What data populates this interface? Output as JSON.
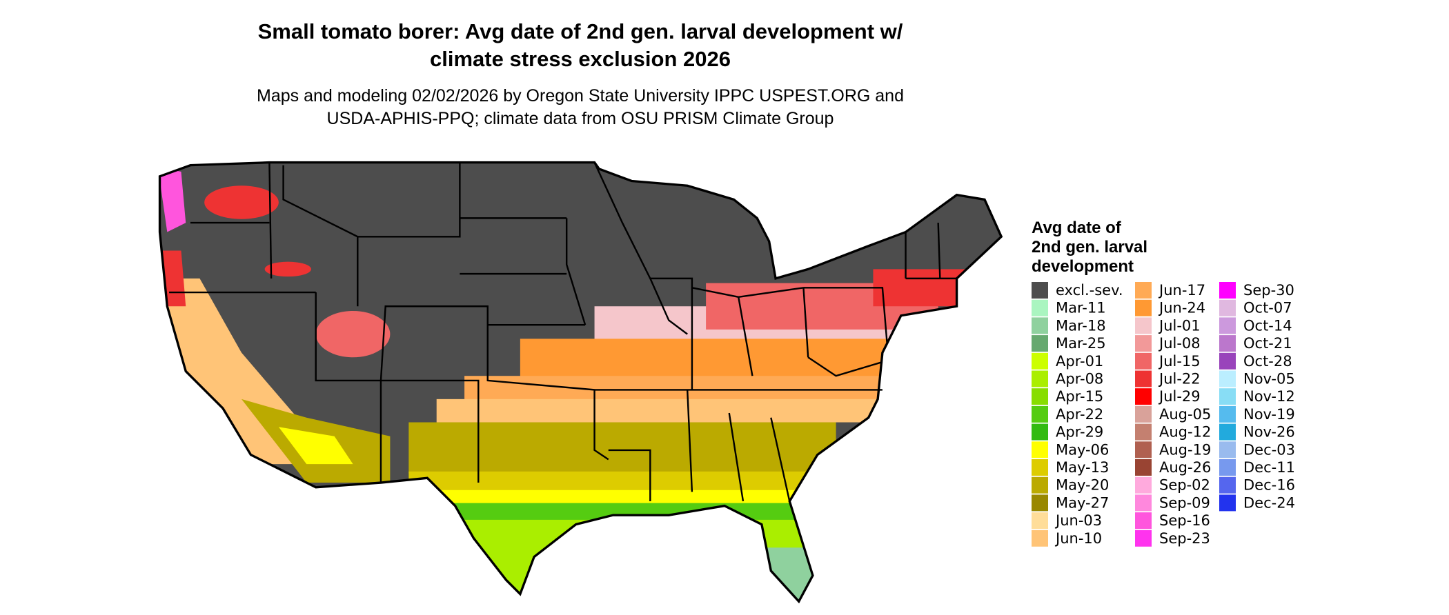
{
  "title_lines": [
    "Small tomato borer: Avg date of 2nd gen. larval development w/",
    "climate stress exclusion 2026"
  ],
  "subtitle_lines": [
    "Maps and modeling 02/02/2026 by Oregon State University IPPC USPEST.ORG and",
    "USDA-APHIS-PPQ; climate data from OSU PRISM Climate Group"
  ],
  "legend": {
    "title_lines": [
      "Avg date of",
      "2nd gen. larval",
      "development"
    ],
    "items": [
      {
        "label": "excl.-sev.",
        "color": "#4d4d4d"
      },
      {
        "label": "Mar-11",
        "color": "#aaf5c0"
      },
      {
        "label": "Mar-18",
        "color": "#8fd19e"
      },
      {
        "label": "Mar-25",
        "color": "#66a96f"
      },
      {
        "label": "Apr-01",
        "color": "#ccff00"
      },
      {
        "label": "Apr-08",
        "color": "#aaee00"
      },
      {
        "label": "Apr-15",
        "color": "#88dd00"
      },
      {
        "label": "Apr-22",
        "color": "#55cc11"
      },
      {
        "label": "Apr-29",
        "color": "#33bb11"
      },
      {
        "label": "May-06",
        "color": "#ffff00"
      },
      {
        "label": "May-13",
        "color": "#ddcc00"
      },
      {
        "label": "May-20",
        "color": "#bbaa00"
      },
      {
        "label": "May-27",
        "color": "#998800"
      },
      {
        "label": "Jun-03",
        "color": "#ffdd99"
      },
      {
        "label": "Jun-10",
        "color": "#ffc477"
      },
      {
        "label": "Jun-17",
        "color": "#ffaa55"
      },
      {
        "label": "Jun-24",
        "color": "#ff9933"
      },
      {
        "label": "Jul-01",
        "color": "#f5c6cb"
      },
      {
        "label": "Jul-08",
        "color": "#f29999"
      },
      {
        "label": "Jul-15",
        "color": "#f06666"
      },
      {
        "label": "Jul-22",
        "color": "#ee3333"
      },
      {
        "label": "Jul-29",
        "color": "#ff0000"
      },
      {
        "label": "Aug-05",
        "color": "#d9a29a"
      },
      {
        "label": "Aug-12",
        "color": "#c48070"
      },
      {
        "label": "Aug-19",
        "color": "#b06050"
      },
      {
        "label": "Aug-26",
        "color": "#994433"
      },
      {
        "label": "Sep-02",
        "color": "#ffaadd"
      },
      {
        "label": "Sep-09",
        "color": "#ff88dd"
      },
      {
        "label": "Sep-16",
        "color": "#ff55dd"
      },
      {
        "label": "Sep-23",
        "color": "#ff33ee"
      },
      {
        "label": "Sep-30",
        "color": "#ff00ff"
      },
      {
        "label": "Oct-07",
        "color": "#e0b8e0"
      },
      {
        "label": "Oct-14",
        "color": "#cc99dd"
      },
      {
        "label": "Oct-21",
        "color": "#bb77cc"
      },
      {
        "label": "Oct-28",
        "color": "#9944bb"
      },
      {
        "label": "Nov-05",
        "color": "#bbeeff"
      },
      {
        "label": "Nov-12",
        "color": "#88ddf5"
      },
      {
        "label": "Nov-19",
        "color": "#55bbee"
      },
      {
        "label": "Nov-26",
        "color": "#22aadd"
      },
      {
        "label": "Dec-03",
        "color": "#99bbee"
      },
      {
        "label": "Dec-11",
        "color": "#7799ee"
      },
      {
        "label": "Dec-16",
        "color": "#5566ee"
      },
      {
        "label": "Dec-24",
        "color": "#2233ee"
      }
    ]
  }
}
